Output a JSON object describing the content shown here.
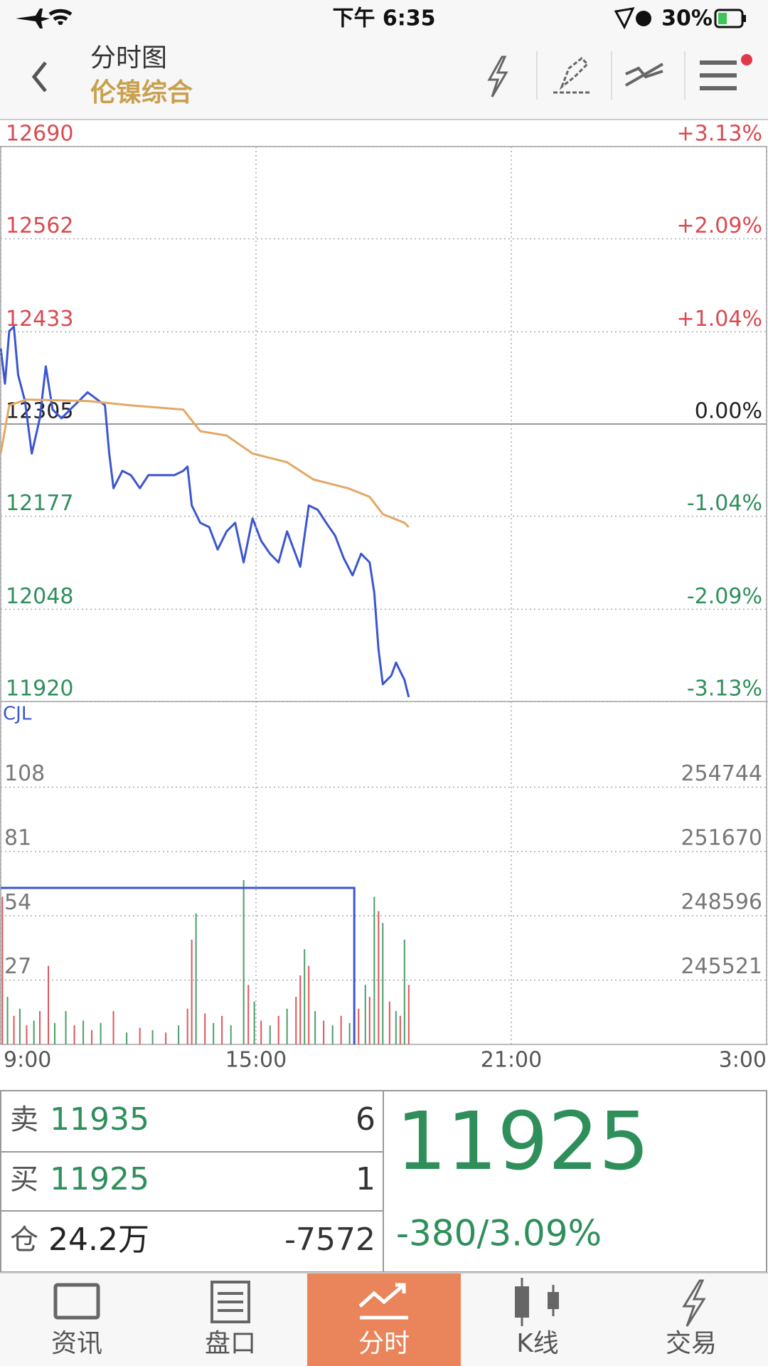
{
  "status_bar": {
    "time": "下午 6:35",
    "battery": "30%"
  },
  "header": {
    "title": "分时图",
    "subtitle": "伦镍综合"
  },
  "chart_data": [
    {
      "type": "line",
      "xlim": [
        9,
        27
      ],
      "xticks": [
        {
          "value": 9,
          "label": "9:00"
        },
        {
          "value": 15,
          "label": "15:00"
        },
        {
          "value": 21,
          "label": "21:00"
        },
        {
          "value": 27,
          "label": "3:00"
        }
      ],
      "ylim": [
        11920,
        12690
      ],
      "yticks": [
        12690,
        12562,
        12433,
        12305,
        12177,
        12048,
        11920
      ],
      "y2lim": [
        -3.13,
        3.13
      ],
      "y2ticks": [
        {
          "value": 3.13,
          "label": "+3.13%"
        },
        {
          "value": 2.09,
          "label": "+2.09%"
        },
        {
          "value": 1.04,
          "label": "+1.04%"
        },
        {
          "value": 0,
          "label": "0.00%"
        },
        {
          "value": -1.04,
          "label": "-1.04%"
        },
        {
          "value": -2.09,
          "label": "-2.09%"
        },
        {
          "value": -3.13,
          "label": "-3.13%"
        }
      ],
      "grid": true,
      "series": [
        {
          "color": "#3b56cf",
          "x": [
            9,
            9.1,
            9.2,
            9.31,
            9.41,
            9.57,
            9.73,
            9.92,
            10.06,
            10.22,
            10.43,
            10.63,
            10.84,
            11.04,
            11.45,
            11.55,
            11.65,
            11.86,
            12.06,
            12.27,
            12.47,
            13.08,
            13.29,
            13.39,
            13.49,
            13.69,
            13.9,
            14.1,
            14.31,
            14.51,
            14.71,
            14.92,
            15.12,
            15.33,
            15.53,
            15.73,
            16.04,
            16.24,
            16.45,
            16.65,
            16.86,
            17.06,
            17.27,
            17.47,
            17.67,
            17.78,
            17.88,
            17.98,
            18.18,
            18.29,
            18.39,
            18.49,
            18.59
          ],
          "values": [
            12410,
            12361,
            12434,
            12440,
            12373,
            12337,
            12264,
            12313,
            12385,
            12325,
            12313,
            12325,
            12337,
            12349,
            12331,
            12264,
            12216,
            12240,
            12234,
            12216,
            12234,
            12234,
            12240,
            12246,
            12192,
            12168,
            12162,
            12131,
            12156,
            12168,
            12113,
            12174,
            12143,
            12125,
            12113,
            12156,
            12107,
            12192,
            12186,
            12168,
            12150,
            12119,
            12095,
            12125,
            12113,
            12071,
            11992,
            11944,
            11956,
            11974,
            11962,
            11950,
            11926
          ]
        },
        {
          "color": "#e3a865",
          "x": [
            9,
            9.2,
            9.61,
            11.04,
            12.06,
            13.29,
            13.69,
            14.31,
            14.92,
            15.73,
            16.35,
            17.16,
            17.67,
            17.98,
            18.49,
            18.59
          ],
          "values": [
            12264,
            12331,
            12339,
            12337,
            12331,
            12325,
            12295,
            12289,
            12264,
            12252,
            12228,
            12216,
            12204,
            12180,
            12168,
            12162
          ]
        }
      ]
    },
    {
      "type": "bar",
      "label": "CJL",
      "xlim": [
        9,
        27
      ],
      "ylim": [
        0,
        144
      ],
      "yticks": [
        108,
        81,
        54,
        27
      ],
      "y2lim": [
        242447,
        258842
      ],
      "y2ticks": [
        254744,
        251670,
        248596,
        245521
      ],
      "grid": true,
      "x": [
        9.04,
        9.16,
        9.31,
        9.45,
        9.61,
        9.78,
        9.92,
        10.12,
        10.27,
        10.53,
        10.73,
        10.94,
        11.14,
        11.35,
        11.65,
        11.96,
        12.27,
        12.57,
        12.88,
        13.18,
        13.39,
        13.49,
        13.59,
        13.8,
        14,
        14.2,
        14.41,
        14.71,
        14.82,
        14.96,
        15.12,
        15.33,
        15.53,
        15.73,
        15.94,
        16.04,
        16.14,
        16.24,
        16.39,
        16.59,
        16.8,
        17,
        17.2,
        17.41,
        17.57,
        17.67,
        17.78,
        17.88,
        17.98,
        18.14,
        18.29,
        18.39,
        18.49,
        18.59
      ],
      "values": [
        62,
        20,
        12,
        15,
        8,
        10,
        14,
        33,
        9,
        14,
        8,
        10,
        6,
        9,
        14,
        5,
        7,
        6,
        5,
        8,
        15,
        44,
        55,
        13,
        9,
        12,
        8,
        69,
        25,
        18,
        10,
        8,
        12,
        15,
        20,
        29,
        40,
        33,
        14,
        10,
        8,
        12,
        9,
        15,
        25,
        20,
        62,
        56,
        51,
        18,
        14,
        12,
        44,
        25
      ],
      "colors": [
        "#e0555a",
        "#4a9e6a",
        "#e0555a",
        "#4a9e6a",
        "#e0555a",
        "#4a9e6a",
        "#e0555a",
        "#e0555a",
        "#4a9e6a",
        "#4a9e6a",
        "#e0555a",
        "#4a9e6a",
        "#e0555a",
        "#4a9e6a",
        "#e0555a",
        "#4a9e6a",
        "#e0555a",
        "#4a9e6a",
        "#e0555a",
        "#4a9e6a",
        "#e0555a",
        "#e0555a",
        "#4a9e6a",
        "#e0555a",
        "#4a9e6a",
        "#e0555a",
        "#4a9e6a",
        "#4a9e6a",
        "#e0555a",
        "#4a9e6a",
        "#e0555a",
        "#4a9e6a",
        "#e0555a",
        "#4a9e6a",
        "#e0555a",
        "#e0555a",
        "#4a9e6a",
        "#e0555a",
        "#4a9e6a",
        "#e0555a",
        "#4a9e6a",
        "#e0555a",
        "#4a9e6a",
        "#e0555a",
        "#4a9e6a",
        "#e0555a",
        "#4a9e6a",
        "#e0555a",
        "#4a9e6a",
        "#e0555a",
        "#4a9e6a",
        "#e0555a",
        "#4a9e6a",
        "#e0555a"
      ],
      "series": [
        {
          "color": "#3b56cf",
          "axis": "y2",
          "x": [
            9,
            17.31,
            17.31
          ],
          "values": [
            249931,
            249931,
            242447
          ]
        }
      ]
    }
  ],
  "quote": {
    "rows": [
      {
        "label": "卖",
        "price": 11935,
        "qty": 6
      },
      {
        "label": "买",
        "price": 11925,
        "qty": 1
      },
      {
        "label": "仓",
        "price": "24.2万",
        "qty": -7572
      }
    ],
    "last": 11925,
    "change": "-380/3.09%"
  },
  "tabs": [
    "资讯",
    "盘口",
    "分时",
    "K线",
    "交易"
  ]
}
